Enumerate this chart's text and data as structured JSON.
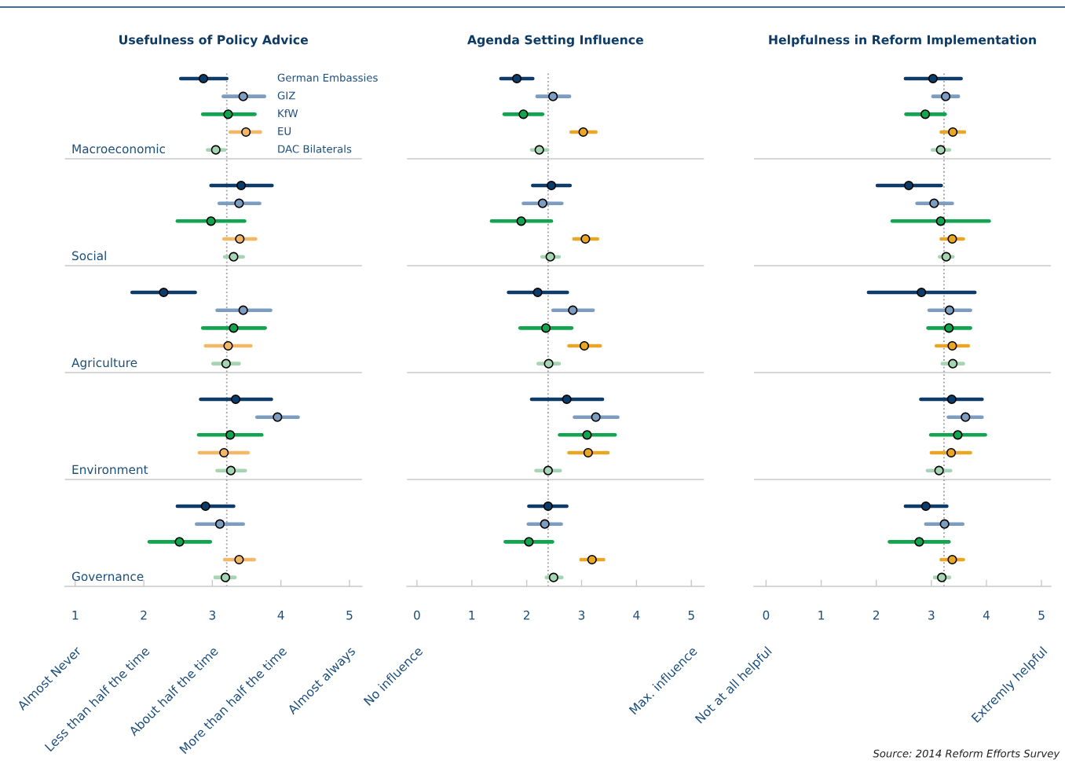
{
  "chart_data": [
    {
      "type": "scatter",
      "orientation": "horizontal",
      "title": "Usefulness of Policy Advice",
      "categories": [
        null,
        null,
        null,
        null,
        null,
        "Macroeconomic",
        null,
        null,
        null,
        null,
        null,
        "Social",
        null,
        null,
        null,
        null,
        null,
        "Agriculture",
        null,
        null,
        null,
        null,
        null,
        "Environment",
        null,
        null,
        null,
        null,
        null,
        "Governance"
      ],
      "xlim": [
        0.85,
        5.18
      ],
      "xticks": [
        1,
        2,
        3,
        4,
        5
      ],
      "grid": "y",
      "marker": "circle",
      "ref_lines": [
        {
          "axis": "x",
          "value": 3.21,
          "color": "#9e9e9e",
          "line_style": "dotted"
        }
      ],
      "annotations": [
        "Almost Never",
        "Less than half the time",
        "About half the time",
        "More than half the time",
        "Almost always"
      ],
      "series": [
        {
          "name": "German Embassies",
          "color": "#0d3c69",
          "values": [
            null,
            2.87,
            null,
            null,
            null,
            null,
            null,
            3.42,
            null,
            null,
            null,
            null,
            null,
            2.29,
            null,
            null,
            null,
            null,
            null,
            3.34,
            null,
            null,
            null,
            null,
            null,
            2.9,
            null,
            null,
            null,
            null
          ],
          "errors": [
            null,
            [
              2.54,
              3.21
            ],
            null,
            null,
            null,
            null,
            null,
            [
              2.98,
              3.87
            ],
            null,
            null,
            null,
            null,
            null,
            [
              1.83,
              2.75
            ],
            null,
            null,
            null,
            null,
            null,
            [
              2.83,
              3.86
            ],
            null,
            null,
            null,
            null,
            null,
            [
              2.49,
              3.31
            ],
            null,
            null,
            null,
            null
          ]
        },
        {
          "name": "GIZ",
          "color": "#7c9dc1",
          "values": [
            null,
            null,
            3.45,
            null,
            null,
            null,
            null,
            null,
            3.39,
            null,
            null,
            null,
            null,
            null,
            3.45,
            null,
            null,
            null,
            null,
            null,
            3.95,
            null,
            null,
            null,
            null,
            null,
            3.11,
            null,
            null,
            null
          ],
          "errors": [
            null,
            null,
            [
              3.16,
              3.76
            ],
            null,
            null,
            null,
            null,
            null,
            [
              3.1,
              3.69
            ],
            null,
            null,
            null,
            null,
            null,
            [
              3.07,
              3.85
            ],
            null,
            null,
            null,
            null,
            null,
            [
              3.65,
              4.25
            ],
            null,
            null,
            null,
            null,
            null,
            [
              2.77,
              3.45
            ],
            null,
            null,
            null
          ]
        },
        {
          "name": "KfW",
          "color": "#12a44f",
          "values": [
            null,
            null,
            null,
            3.23,
            null,
            null,
            null,
            null,
            null,
            2.98,
            null,
            null,
            null,
            null,
            null,
            3.31,
            null,
            null,
            null,
            null,
            null,
            3.26,
            null,
            null,
            null,
            null,
            null,
            2.52,
            null,
            null
          ],
          "errors": [
            null,
            null,
            null,
            [
              2.86,
              3.62
            ],
            null,
            null,
            null,
            null,
            null,
            [
              2.49,
              3.47
            ],
            null,
            null,
            null,
            null,
            null,
            [
              2.86,
              3.77
            ],
            null,
            null,
            null,
            null,
            null,
            [
              2.8,
              3.72
            ],
            null,
            null,
            null,
            null,
            null,
            [
              2.08,
              2.97
            ],
            null,
            null
          ]
        },
        {
          "name": "EU",
          "color": "#f2b867",
          "values": [
            null,
            null,
            null,
            null,
            3.49,
            null,
            null,
            null,
            null,
            null,
            3.4,
            null,
            null,
            null,
            null,
            null,
            3.23,
            null,
            null,
            null,
            null,
            null,
            3.17,
            null,
            null,
            null,
            null,
            null,
            3.39,
            null
          ],
          "errors": [
            null,
            null,
            null,
            null,
            [
              3.26,
              3.7
            ],
            null,
            null,
            null,
            null,
            null,
            [
              3.17,
              3.63
            ],
            null,
            null,
            null,
            null,
            null,
            [
              2.9,
              3.56
            ],
            null,
            null,
            null,
            null,
            null,
            [
              2.81,
              3.52
            ],
            null,
            null,
            null,
            null,
            null,
            [
              3.18,
              3.61
            ],
            null
          ]
        },
        {
          "name": "DAC Bilaterals",
          "color": "#a6d5b3",
          "values": [
            null,
            null,
            null,
            null,
            null,
            3.05,
            null,
            null,
            null,
            null,
            null,
            3.31,
            null,
            null,
            null,
            null,
            null,
            3.2,
            null,
            null,
            null,
            null,
            null,
            3.27,
            null,
            null,
            null,
            null,
            null,
            3.19
          ],
          "errors": [
            null,
            null,
            null,
            null,
            null,
            [
              2.93,
              3.18
            ],
            null,
            null,
            null,
            null,
            null,
            [
              3.18,
              3.45
            ],
            null,
            null,
            null,
            null,
            null,
            [
              3.01,
              3.39
            ],
            null,
            null,
            null,
            null,
            null,
            [
              3.07,
              3.48
            ],
            null,
            null,
            null,
            null,
            null,
            [
              3.04,
              3.33
            ]
          ]
        }
      ]
    },
    {
      "type": "scatter",
      "orientation": "horizontal",
      "title": "Agenda Setting Influence",
      "categories": [
        null,
        null,
        null,
        null,
        null,
        null,
        null,
        null,
        null,
        null,
        null,
        null,
        null,
        null,
        null,
        null,
        null,
        null,
        null,
        null,
        null,
        null,
        null,
        null,
        null,
        null,
        null,
        null,
        null,
        null
      ],
      "xlim": [
        -0.18,
        5.23
      ],
      "xticks": [
        0,
        1,
        2,
        3,
        4,
        5
      ],
      "grid": "y",
      "marker": "circle",
      "ref_lines": [
        {
          "axis": "x",
          "value": 2.39,
          "color": "#9e9e9e",
          "line_style": "dotted"
        }
      ],
      "annotations": [
        "No influence",
        "Max. influence"
      ],
      "series": [
        {
          "color": "#0d3c69",
          "values": [
            null,
            1.82,
            null,
            null,
            null,
            null,
            null,
            2.45,
            null,
            null,
            null,
            null,
            null,
            2.2,
            null,
            null,
            null,
            null,
            null,
            2.73,
            null,
            null,
            null,
            null,
            null,
            2.39,
            null,
            null,
            null,
            null
          ],
          "errors": [
            null,
            [
              1.53,
              2.11
            ],
            null,
            null,
            null,
            null,
            null,
            [
              2.11,
              2.79
            ],
            null,
            null,
            null,
            null,
            null,
            [
              1.67,
              2.74
            ],
            null,
            null,
            null,
            null,
            null,
            [
              2.09,
              3.38
            ],
            null,
            null,
            null,
            null,
            null,
            [
              2.04,
              2.73
            ],
            null,
            null,
            null,
            null
          ]
        },
        {
          "color": "#7c9dc1",
          "values": [
            null,
            null,
            2.48,
            null,
            null,
            null,
            null,
            null,
            2.29,
            null,
            null,
            null,
            null,
            null,
            2.84,
            null,
            null,
            null,
            null,
            null,
            3.26,
            null,
            null,
            null,
            null,
            null,
            2.33,
            null,
            null,
            null
          ],
          "errors": [
            null,
            null,
            [
              2.19,
              2.78
            ],
            null,
            null,
            null,
            null,
            null,
            [
              1.94,
              2.64
            ],
            null,
            null,
            null,
            null,
            null,
            [
              2.48,
              3.21
            ],
            null,
            null,
            null,
            null,
            null,
            [
              2.87,
              3.66
            ],
            null,
            null,
            null,
            null,
            null,
            [
              2.03,
              2.63
            ],
            null,
            null,
            null
          ]
        },
        {
          "color": "#12a44f",
          "values": [
            null,
            null,
            null,
            1.94,
            null,
            null,
            null,
            null,
            null,
            1.9,
            null,
            null,
            null,
            null,
            null,
            2.35,
            null,
            null,
            null,
            null,
            null,
            3.1,
            null,
            null,
            null,
            null,
            null,
            2.04,
            null,
            null
          ],
          "errors": [
            null,
            null,
            null,
            [
              1.59,
              2.29
            ],
            null,
            null,
            null,
            null,
            null,
            [
              1.36,
              2.45
            ],
            null,
            null,
            null,
            null,
            null,
            [
              1.88,
              2.82
            ],
            null,
            null,
            null,
            null,
            null,
            [
              2.6,
              3.61
            ],
            null,
            null,
            null,
            null,
            null,
            [
              1.61,
              2.47
            ],
            null,
            null
          ]
        },
        {
          "color": "#e9a627",
          "values": [
            null,
            null,
            null,
            null,
            3.03,
            null,
            null,
            null,
            null,
            null,
            3.07,
            null,
            null,
            null,
            null,
            null,
            3.05,
            null,
            null,
            null,
            null,
            null,
            3.12,
            null,
            null,
            null,
            null,
            null,
            3.19,
            null
          ],
          "errors": [
            null,
            null,
            null,
            null,
            [
              2.81,
              3.26
            ],
            null,
            null,
            null,
            null,
            null,
            [
              2.86,
              3.29
            ],
            null,
            null,
            null,
            null,
            null,
            [
              2.77,
              3.34
            ],
            null,
            null,
            null,
            null,
            null,
            [
              2.77,
              3.48
            ],
            null,
            null,
            null,
            null,
            null,
            [
              2.99,
              3.4
            ],
            null
          ]
        },
        {
          "color": "#a6d5b3",
          "values": [
            null,
            null,
            null,
            null,
            null,
            2.23,
            null,
            null,
            null,
            null,
            null,
            2.43,
            null,
            null,
            null,
            null,
            null,
            2.4,
            null,
            null,
            null,
            null,
            null,
            2.39,
            null,
            null,
            null,
            null,
            null,
            2.49
          ],
          "errors": [
            null,
            null,
            null,
            null,
            null,
            [
              2.09,
              2.38
            ],
            null,
            null,
            null,
            null,
            null,
            [
              2.28,
              2.59
            ],
            null,
            null,
            null,
            null,
            null,
            [
              2.21,
              2.59
            ],
            null,
            null,
            null,
            null,
            null,
            [
              2.17,
              2.61
            ],
            null,
            null,
            null,
            null,
            null,
            [
              2.36,
              2.64
            ]
          ]
        }
      ]
    },
    {
      "type": "scatter",
      "orientation": "horizontal",
      "title": "Helpfulness in Reform Implementation",
      "categories": [
        null,
        null,
        null,
        null,
        null,
        null,
        null,
        null,
        null,
        null,
        null,
        null,
        null,
        null,
        null,
        null,
        null,
        null,
        null,
        null,
        null,
        null,
        null,
        null,
        null,
        null,
        null,
        null,
        null,
        null
      ],
      "xlim": [
        -0.22,
        5.17
      ],
      "xticks": [
        0,
        1,
        2,
        3,
        4,
        5
      ],
      "grid": "y",
      "marker": "circle",
      "ref_lines": [
        {
          "axis": "x",
          "value": 3.23,
          "color": "#9e9e9e",
          "line_style": "dotted"
        }
      ],
      "annotations": [
        "Not at all helpful",
        "Extremly helpful"
      ],
      "series": [
        {
          "color": "#0d3c69",
          "values": [
            null,
            3.03,
            null,
            null,
            null,
            null,
            null,
            2.59,
            null,
            null,
            null,
            null,
            null,
            2.82,
            null,
            null,
            null,
            null,
            null,
            3.37,
            null,
            null,
            null,
            null,
            null,
            2.9,
            null,
            null,
            null,
            null
          ],
          "errors": [
            null,
            [
              2.53,
              3.54
            ],
            null,
            null,
            null,
            null,
            null,
            [
              2.02,
              3.18
            ],
            null,
            null,
            null,
            null,
            null,
            [
              1.86,
              3.79
            ],
            null,
            null,
            null,
            null,
            null,
            [
              2.81,
              3.92
            ],
            null,
            null,
            null,
            null,
            null,
            [
              2.53,
              3.28
            ],
            null,
            null,
            null,
            null
          ]
        },
        {
          "color": "#7c9dc1",
          "values": [
            null,
            null,
            3.26,
            null,
            null,
            null,
            null,
            null,
            3.05,
            null,
            null,
            null,
            null,
            null,
            3.33,
            null,
            null,
            null,
            null,
            null,
            3.62,
            null,
            null,
            null,
            null,
            null,
            3.24,
            null,
            null,
            null
          ],
          "errors": [
            null,
            null,
            [
              3.03,
              3.49
            ],
            null,
            null,
            null,
            null,
            null,
            [
              2.74,
              3.38
            ],
            null,
            null,
            null,
            null,
            null,
            [
              2.96,
              3.71
            ],
            null,
            null,
            null,
            null,
            null,
            [
              3.31,
              3.92
            ],
            null,
            null,
            null,
            null,
            null,
            [
              2.9,
              3.57
            ],
            null,
            null,
            null
          ]
        },
        {
          "color": "#12a44f",
          "values": [
            null,
            null,
            null,
            2.89,
            null,
            null,
            null,
            null,
            null,
            3.17,
            null,
            null,
            null,
            null,
            null,
            3.32,
            null,
            null,
            null,
            null,
            null,
            3.48,
            null,
            null,
            null,
            null,
            null,
            2.78,
            null,
            null
          ],
          "errors": [
            null,
            null,
            null,
            [
              2.54,
              3.25
            ],
            null,
            null,
            null,
            null,
            null,
            [
              2.29,
              4.05
            ],
            null,
            null,
            null,
            null,
            null,
            [
              2.94,
              3.71
            ],
            null,
            null,
            null,
            null,
            null,
            [
              2.99,
              3.98
            ],
            null,
            null,
            null,
            null,
            null,
            [
              2.24,
              3.32
            ],
            null,
            null
          ]
        },
        {
          "color": "#e9a627",
          "values": [
            null,
            null,
            null,
            null,
            3.39,
            null,
            null,
            null,
            null,
            null,
            3.38,
            null,
            null,
            null,
            null,
            null,
            3.38,
            null,
            null,
            null,
            null,
            null,
            3.36,
            null,
            null,
            null,
            null,
            null,
            3.38,
            null
          ],
          "errors": [
            null,
            null,
            null,
            null,
            [
              3.18,
              3.6
            ],
            null,
            null,
            null,
            null,
            null,
            [
              3.18,
              3.58
            ],
            null,
            null,
            null,
            null,
            null,
            [
              3.09,
              3.67
            ],
            null,
            null,
            null,
            null,
            null,
            [
              3.0,
              3.71
            ],
            null,
            null,
            null,
            null,
            null,
            [
              3.18,
              3.58
            ],
            null
          ]
        },
        {
          "color": "#a6d5b3",
          "values": [
            null,
            null,
            null,
            null,
            null,
            3.17,
            null,
            null,
            null,
            null,
            null,
            3.27,
            null,
            null,
            null,
            null,
            null,
            3.39,
            null,
            null,
            null,
            null,
            null,
            3.14,
            null,
            null,
            null,
            null,
            null,
            3.19
          ],
          "errors": [
            null,
            null,
            null,
            null,
            null,
            [
              3.02,
              3.33
            ],
            null,
            null,
            null,
            null,
            null,
            [
              3.15,
              3.39
            ],
            null,
            null,
            null,
            null,
            null,
            [
              3.2,
              3.58
            ],
            null,
            null,
            null,
            null,
            null,
            [
              2.93,
              3.35
            ],
            null,
            null,
            null,
            null,
            null,
            [
              3.06,
              3.33
            ]
          ]
        }
      ]
    },
    {
      "type": "other",
      "annotations": [
        "Source: 2014 Reform Efforts Survey"
      ]
    }
  ]
}
